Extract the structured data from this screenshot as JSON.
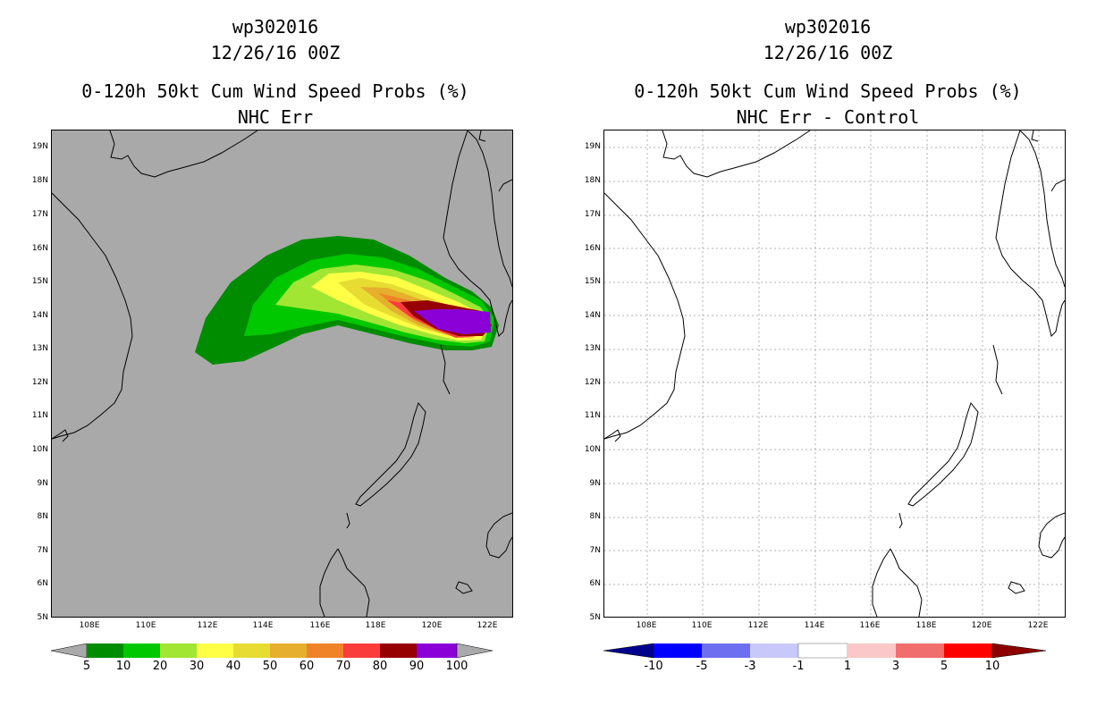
{
  "left": {
    "storm_id": "wp302016",
    "datetime": "12/26/16 00Z",
    "product": "0-120h 50kt Cum Wind Speed Probs (%)",
    "subtitle": "NHC Err",
    "colorbar": {
      "labels": [
        "5",
        "10",
        "20",
        "30",
        "40",
        "50",
        "60",
        "70",
        "80",
        "90",
        "100"
      ],
      "colors": [
        "#008c00",
        "#00c800",
        "#a0e632",
        "#ffff46",
        "#e6dc32",
        "#e6af2d",
        "#f08228",
        "#fa3c3c",
        "#960000",
        "#8c00d8"
      ],
      "background": "#a9a9a9"
    }
  },
  "right": {
    "storm_id": "wp302016",
    "datetime": "12/26/16 00Z",
    "product": "0-120h 50kt Cum Wind Speed Probs (%)",
    "subtitle": "NHC Err - Control",
    "colorbar": {
      "labels": [
        "-10",
        "-5",
        "-3",
        "-1",
        "1",
        "3",
        "5",
        "10"
      ],
      "colors": [
        "#00008c",
        "#0000ff",
        "#6e6ef0",
        "#c8c8fa",
        "#ffffff",
        "#fac8c8",
        "#f06e6e",
        "#ff0000",
        "#8c0000"
      ]
    }
  },
  "axes": {
    "lat_labels": [
      "19N",
      "18N",
      "17N",
      "16N",
      "15N",
      "14N",
      "13N",
      "12N",
      "11N",
      "10N",
      "9N",
      "8N",
      "7N",
      "6N",
      "5N"
    ],
    "lon_labels": [
      "108E",
      "110E",
      "112E",
      "114E",
      "116E",
      "118E",
      "120E",
      "122E"
    ]
  },
  "swath": {
    "description_levels": [
      5,
      10,
      20,
      30,
      40,
      50,
      60,
      70,
      80,
      90
    ]
  }
}
